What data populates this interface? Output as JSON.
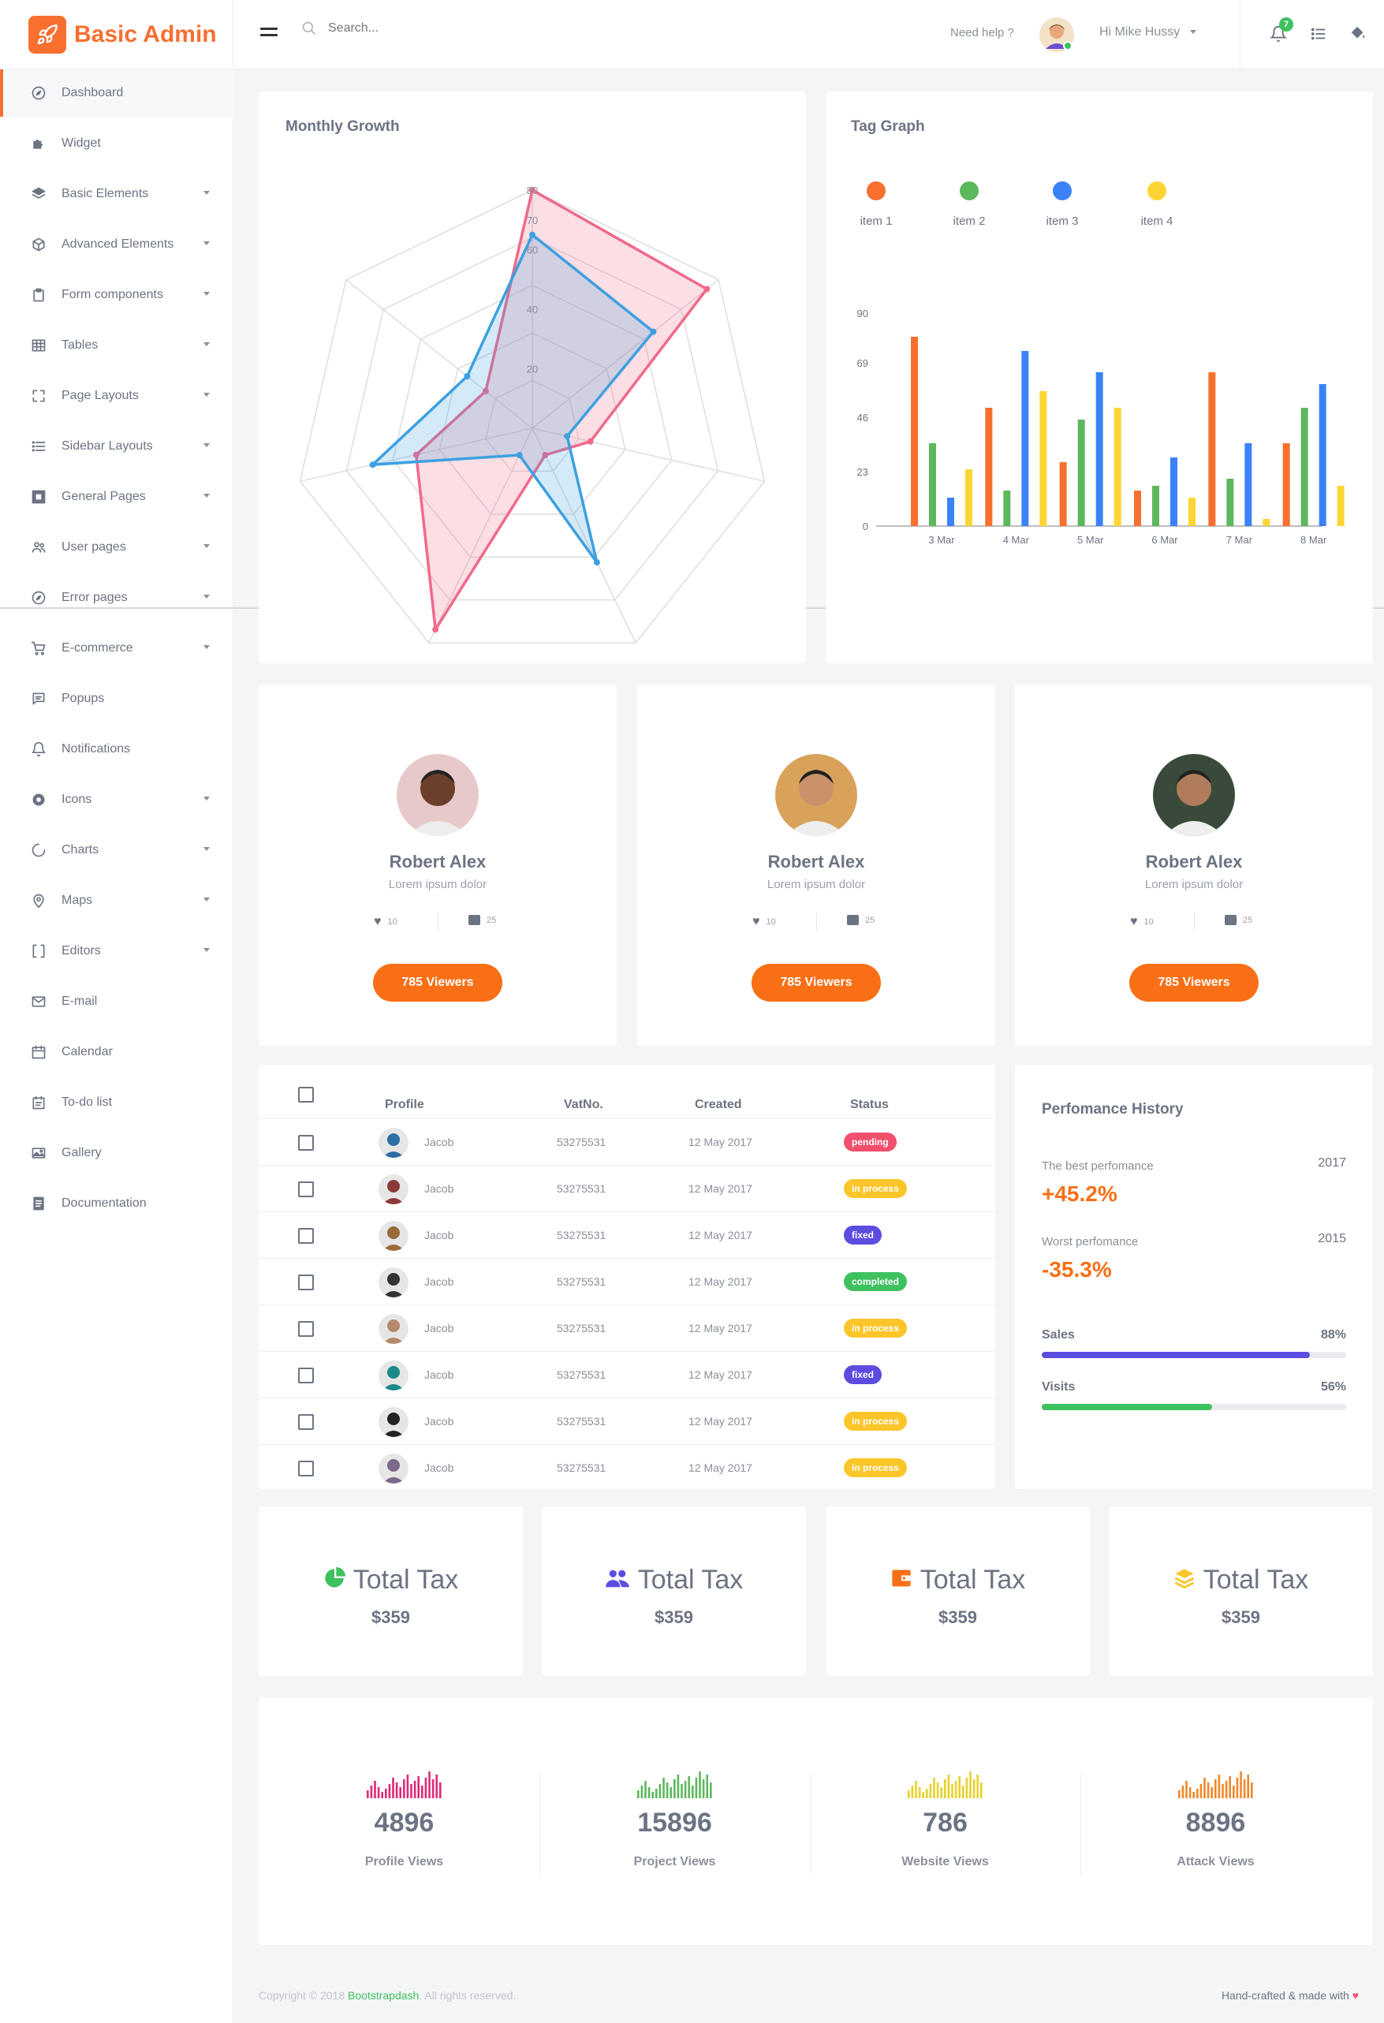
{
  "brand": {
    "name": "Basic Admin",
    "color": "#f86f2f"
  },
  "topbar": {
    "search_placeholder": "Search...",
    "help": "Need help ?",
    "user": "Hi Mike Hussy",
    "notification_count": "7"
  },
  "sidebar": {
    "items": [
      {
        "label": "Dashboard",
        "icon": "compass-icon",
        "caret": false,
        "active": true
      },
      {
        "label": "Widget",
        "icon": "puzzle-icon",
        "caret": false
      },
      {
        "label": "Basic Elements",
        "icon": "layers-icon",
        "caret": true
      },
      {
        "label": "Advanced Elements",
        "icon": "box-icon",
        "caret": true
      },
      {
        "label": "Form components",
        "icon": "clipboard-icon",
        "caret": true
      },
      {
        "label": "Tables",
        "icon": "grid-icon",
        "caret": true
      },
      {
        "label": "Page Layouts",
        "icon": "expand-icon",
        "caret": true
      },
      {
        "label": "Sidebar Layouts",
        "icon": "list-icon",
        "caret": true
      },
      {
        "label": "General Pages",
        "icon": "frame-icon",
        "caret": true
      },
      {
        "label": "User pages",
        "icon": "users-icon",
        "caret": true
      },
      {
        "label": "Error pages",
        "icon": "compass-icon",
        "caret": true
      },
      {
        "label": "E-commerce",
        "icon": "cart-icon",
        "caret": true
      },
      {
        "label": "Popups",
        "icon": "message-icon",
        "caret": false
      },
      {
        "label": "Notifications",
        "icon": "bell-icon",
        "caret": false
      },
      {
        "label": "Icons",
        "icon": "circle-icon",
        "caret": true
      },
      {
        "label": "Charts",
        "icon": "pie-icon",
        "caret": true
      },
      {
        "label": "Maps",
        "icon": "pin-icon",
        "caret": true
      },
      {
        "label": "Editors",
        "icon": "brackets-icon",
        "caret": true
      },
      {
        "label": "E-mail",
        "icon": "mail-icon",
        "caret": false
      },
      {
        "label": "Calendar",
        "icon": "calendar-icon",
        "caret": false
      },
      {
        "label": "To-do list",
        "icon": "todo-icon",
        "caret": false
      },
      {
        "label": "Gallery",
        "icon": "image-icon",
        "caret": false
      },
      {
        "label": "Documentation",
        "icon": "doc-icon",
        "caret": false
      }
    ]
  },
  "radar": {
    "title": "Monthly Growth",
    "ticks": [
      "20",
      "40",
      "60",
      "70",
      "80"
    ],
    "max": 80,
    "chart_data": {
      "type": "radar",
      "axes": 7,
      "series": [
        {
          "color": "#f06a8a",
          "values": [
            80,
            75,
            20,
            10,
            75,
            40,
            20
          ]
        },
        {
          "color": "#3da0e0",
          "values": [
            65,
            52,
            12,
            50,
            10,
            55,
            28
          ]
        }
      ]
    }
  },
  "tag_graph": {
    "title": "Tag Graph",
    "legend": [
      {
        "label": "item 1",
        "color": "#f86f2f"
      },
      {
        "label": "item 2",
        "color": "#5cb85c"
      },
      {
        "label": "item 3",
        "color": "#3b82f6"
      },
      {
        "label": "item 4",
        "color": "#fcd535"
      }
    ],
    "chart_data": {
      "type": "bar",
      "categories": [
        "3 Mar",
        "4 Mar",
        "5 Mar",
        "6 Mar",
        "7 Mar",
        "8 Mar"
      ],
      "yticks": [
        "0",
        "23",
        "46",
        "69",
        "90"
      ],
      "ylim": [
        0,
        90
      ],
      "series": [
        {
          "color": "#f86f2f",
          "values": [
            80,
            50,
            27,
            15,
            65,
            35
          ]
        },
        {
          "color": "#5cb85c",
          "values": [
            35,
            15,
            45,
            17,
            20,
            50
          ]
        },
        {
          "color": "#3b82f6",
          "values": [
            12,
            74,
            65,
            29,
            35,
            60
          ]
        },
        {
          "color": "#fcd535",
          "values": [
            24,
            57,
            50,
            12,
            3,
            17
          ]
        }
      ]
    }
  },
  "profiles": [
    {
      "name": "Robert Alex",
      "sub": "Lorem ipsum dolor",
      "likes": "10",
      "comments": "25",
      "button": "785 Viewers"
    },
    {
      "name": "Robert Alex",
      "sub": "Lorem ipsum dolor",
      "likes": "10",
      "comments": "25",
      "button": "785 Viewers"
    },
    {
      "name": "Robert Alex",
      "sub": "Lorem ipsum dolor",
      "likes": "10",
      "comments": "25",
      "button": "785 Viewers"
    }
  ],
  "table": {
    "headers": [
      "Profile",
      "VatNo.",
      "Created",
      "Status"
    ],
    "rows": [
      {
        "name": "Jacob",
        "vat": "53275531",
        "created": "12 May 2017",
        "status": "pending",
        "color": "#f0506e"
      },
      {
        "name": "Jacob",
        "vat": "53275531",
        "created": "12 May 2017",
        "status": "in process",
        "color": "#fcc52a"
      },
      {
        "name": "Jacob",
        "vat": "53275531",
        "created": "12 May 2017",
        "status": "fixed",
        "color": "#5c4ce0"
      },
      {
        "name": "Jacob",
        "vat": "53275531",
        "created": "12 May 2017",
        "status": "completed",
        "color": "#3ec15f"
      },
      {
        "name": "Jacob",
        "vat": "53275531",
        "created": "12 May 2017",
        "status": "in process",
        "color": "#fcc52a"
      },
      {
        "name": "Jacob",
        "vat": "53275531",
        "created": "12 May 2017",
        "status": "fixed",
        "color": "#5c4ce0"
      },
      {
        "name": "Jacob",
        "vat": "53275531",
        "created": "12 May 2017",
        "status": "in process",
        "color": "#fcc52a"
      },
      {
        "name": "Jacob",
        "vat": "53275531",
        "created": "12 May 2017",
        "status": "in process",
        "color": "#fcc52a"
      }
    ]
  },
  "performance": {
    "title": "Perfomance History",
    "best_label": "The best perfomance",
    "best_year": "2017",
    "best_value": "+45.2%",
    "worst_label": "Worst perfomance",
    "worst_year": "2015",
    "worst_value": "-35.3%",
    "sales_label": "Sales",
    "sales_pct": "88%",
    "sales_fraction": 0.88,
    "visits_label": "Visits",
    "visits_pct": "56%",
    "visits_fraction": 0.56
  },
  "tax": [
    {
      "title": "Total Tax",
      "amount": "$359",
      "icon": "pie-chart-icon",
      "color": "#3ec15f"
    },
    {
      "title": "Total Tax",
      "amount": "$359",
      "icon": "users-group-icon",
      "color": "#5c4ce0"
    },
    {
      "title": "Total Tax",
      "amount": "$359",
      "icon": "wallet-icon",
      "color": "#f86f15"
    },
    {
      "title": "Total Tax",
      "amount": "$359",
      "icon": "layers-stack-icon",
      "color": "#fcc52a"
    }
  ],
  "stats": [
    {
      "value": "4896",
      "label": "Profile Views",
      "color": "#e0287a"
    },
    {
      "value": "15896",
      "label": "Project Views",
      "color": "#5cb85c"
    },
    {
      "value": "786",
      "label": "Website Views",
      "color": "#e6d22a"
    },
    {
      "value": "8896",
      "label": "Attack Views",
      "color": "#f0882a"
    }
  ],
  "footer": {
    "copyright_prefix": "Copyright © 2018",
    "copyright_brand": "Bootstrapdash",
    "copyright_suffix": ". All rights reserved.",
    "made_with": "Hand-crafted & made with"
  }
}
